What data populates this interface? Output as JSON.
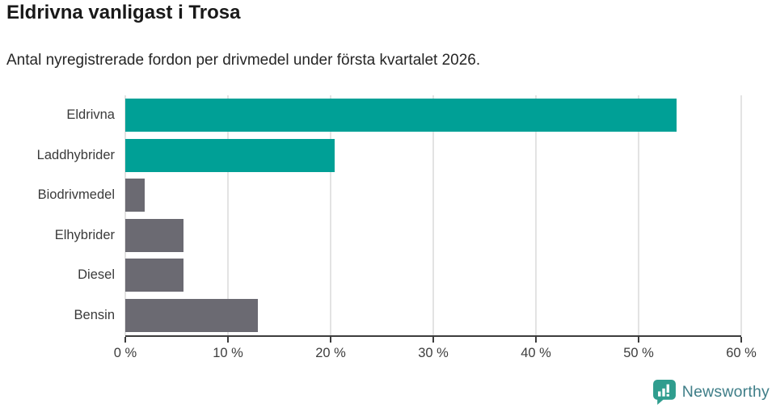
{
  "header": {
    "title": "Eldrivna vanligast i Trosa",
    "subtitle": "Antal nyregistrerade fordon per drivmedel under första kvartalet 2026."
  },
  "chart_data": {
    "type": "bar",
    "orientation": "horizontal",
    "title": "Eldrivna vanligast i Trosa",
    "subtitle": "Antal nyregistrerade fordon per drivmedel under första kvartalet 2026.",
    "categories": [
      "Eldrivna",
      "Laddhybrider",
      "Biodrivmedel",
      "Elhybrider",
      "Diesel",
      "Bensin"
    ],
    "values": [
      53.7,
      20.4,
      1.9,
      5.7,
      5.7,
      12.9
    ],
    "unit": "%",
    "xlabel": "",
    "ylabel": "",
    "xlim": [
      0,
      60
    ],
    "ticks": [
      0,
      10,
      20,
      30,
      40,
      50,
      60
    ],
    "tick_labels": [
      "0 %",
      "10 %",
      "20 %",
      "30 %",
      "40 %",
      "50 %",
      "60 %"
    ],
    "grid": true,
    "legend": "none",
    "bar_colors": [
      "#00a096",
      "#00a096",
      "#6b6a72",
      "#6b6a72",
      "#6b6a72",
      "#6b6a72"
    ],
    "highlight_color": "#00a096",
    "default_color": "#6b6a72",
    "gridline_color": "#e3e3e3",
    "axis_color": "#3d3d3d"
  },
  "footer": {
    "brand": "Newsworthy",
    "brand_color": "#3f7e88",
    "icon_color": "#2f9d8e"
  }
}
